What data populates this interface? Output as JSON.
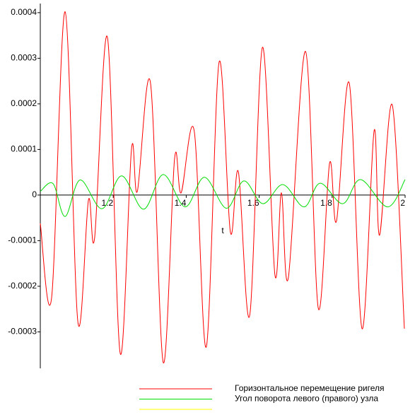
{
  "chart_data": {
    "type": "line",
    "xlabel": "t",
    "xlim": [
      1,
      2
    ],
    "ylim": [
      -0.00038,
      0.00042
    ],
    "xticks": [
      1.2,
      1.4,
      1.6,
      1.8,
      2
    ],
    "yticks": [
      -0.0003,
      -0.0002,
      -0.0001,
      0,
      0.0001,
      0.0002,
      0.0003,
      0.0004
    ],
    "series": [
      {
        "name": "Горизонтальное перемещение ригеля",
        "color": "#ff0000",
        "x": [
          1.0,
          1.031,
          1.068,
          1.103,
          1.132,
          1.149,
          1.184,
          1.219,
          1.25,
          1.266,
          1.302,
          1.337,
          1.368,
          1.386,
          1.422,
          1.455,
          1.49,
          1.521,
          1.543,
          1.574,
          1.609,
          1.643,
          1.661,
          1.68,
          1.727,
          1.762,
          1.793,
          1.812,
          1.847,
          1.882,
          1.915,
          1.93,
          1.965,
          1.998
        ],
        "values": [
          -6.2e-05,
          -0.000225,
          0.000402,
          -0.000278,
          -1.1e-05,
          -9.3e-05,
          0.000346,
          -0.000347,
          0.000101,
          8e-06,
          0.000246,
          -0.000367,
          7.9e-05,
          5e-06,
          0.00014,
          -0.000333,
          0.000291,
          -8.1e-05,
          5.1e-05,
          -0.000264,
          0.000324,
          -0.000174,
          5e-06,
          -0.000181,
          0.000315,
          -0.000248,
          7e-05,
          -5.7e-05,
          0.000245,
          -0.000293,
          0.000141,
          -8.8e-05,
          0.000197,
          -0.000293
        ]
      },
      {
        "name": "Угол поворота левого (правого) узла",
        "color": "#00dd00",
        "x": [
          1.0,
          1.035,
          1.068,
          1.109,
          1.169,
          1.223,
          1.283,
          1.337,
          1.397,
          1.45,
          1.51,
          1.558,
          1.61,
          1.665,
          1.723,
          1.767,
          1.829,
          1.878,
          1.952,
          2.0
        ],
        "values": [
          8e-06,
          2.5e-05,
          -4.7e-05,
          3.3e-05,
          -3e-05,
          4.2e-05,
          -3.1e-05,
          4.5e-05,
          -2.6e-05,
          3.9e-05,
          -2.9e-05,
          3.1e-05,
          -1.9e-05,
          2.3e-05,
          -2.6e-05,
          2.6e-05,
          -1.9e-05,
          3.4e-05,
          -2.6e-05,
          3.4e-05
        ]
      },
      {
        "color": "#ffff00"
      }
    ]
  }
}
